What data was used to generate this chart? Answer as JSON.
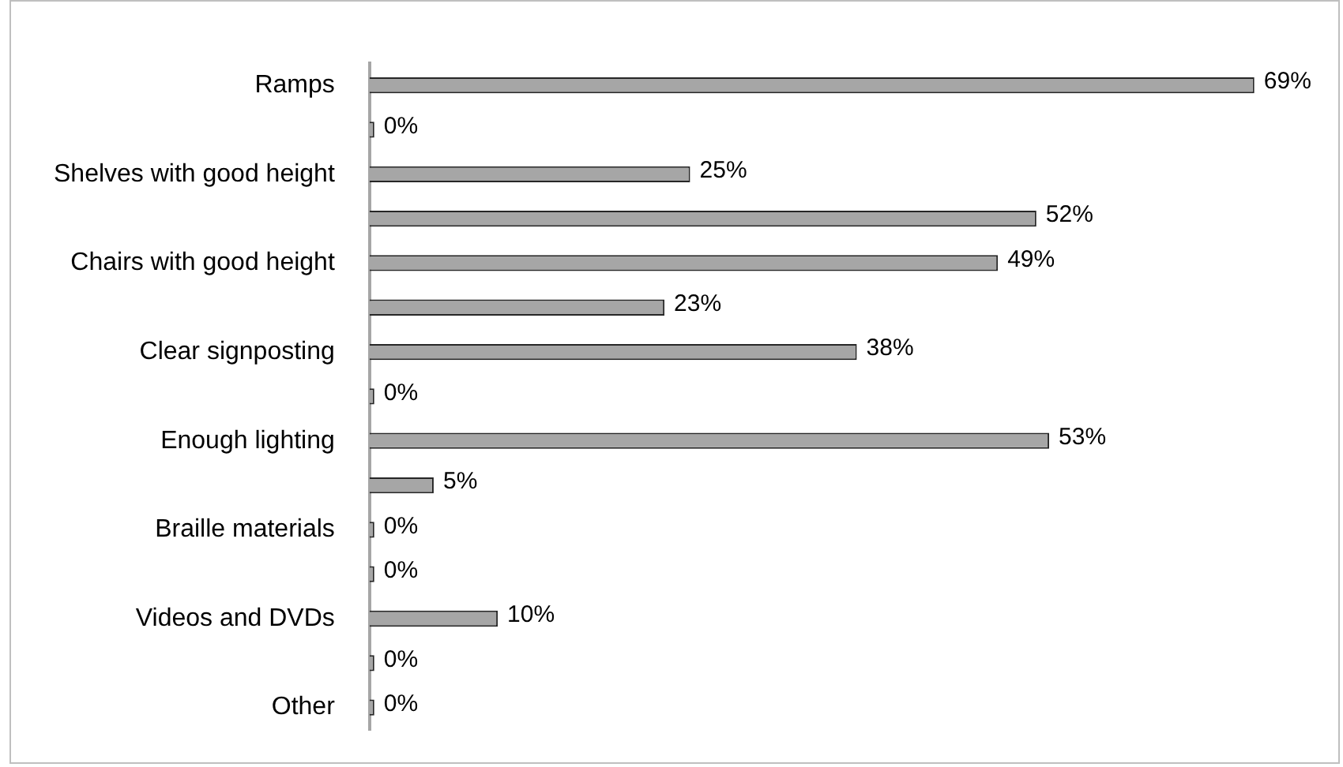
{
  "chart_data": {
    "type": "bar",
    "orientation": "horizontal",
    "categories": [
      "Ramps",
      null,
      "Shelves with good height",
      null,
      "Chairs with good height",
      null,
      "Clear signposting",
      null,
      "Enough lighting",
      null,
      "Braille materials",
      null,
      "Videos and DVDs",
      null,
      "Other"
    ],
    "values": [
      69,
      0,
      25,
      52,
      49,
      23,
      38,
      0,
      53,
      5,
      0,
      0,
      10,
      0,
      0
    ],
    "value_labels": [
      "69%",
      "0%",
      "25%",
      "52%",
      "49%",
      "23%",
      "38%",
      "0%",
      "53%",
      "5%",
      "0%",
      "0%",
      "10%",
      "0%",
      "0%"
    ],
    "color": "#a6a6a6",
    "tick_labels": "y"
  }
}
